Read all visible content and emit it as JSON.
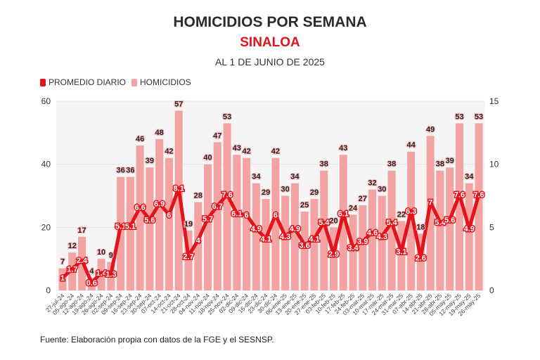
{
  "chart_data": {
    "type": "bar+line",
    "title": "HOMICIDIOS POR SEMANA",
    "subtitle": "SINALOA",
    "date_note": "AL 1 DE JUNIO DE 2025",
    "source": "Fuente: Elaboración propia con datos de la FGE y el SESNSP.",
    "legend": [
      "PROMEDIO DIARIO",
      "HOMICIDIOS"
    ],
    "legend_position": "top-left",
    "categories": [
      "27-jul-24",
      "05-ago-24",
      "12-ago-24",
      "19-ago-24",
      "26-ago-24",
      "02-sep-24",
      "09-sep-24",
      "16-sep-24",
      "23-sep-24",
      "30-sep-24",
      "07-oct-24",
      "14-oct-24",
      "21-oct-24",
      "28-oct-24",
      "04-nov-24",
      "11-nov-24",
      "18-nov-24",
      "25-nov-24",
      "02-dic-24",
      "09-dic-24",
      "16-dic-24",
      "23-dic-24",
      "30-dic-24",
      "06-ene-25",
      "13-ene-25",
      "20-ene-25",
      "27-ene-25",
      "03-feb-25",
      "10-feb-25",
      "17-feb-25",
      "24-feb-25",
      "03-mar-25",
      "10-mar-25",
      "17-mar-25",
      "24-mar-25",
      "31-mar-25",
      "07-abr-25",
      "14-abr-25",
      "21-abr-25",
      "28-abr-25",
      "05-may-25",
      "12-may-25",
      "19-may-25",
      "26-may-25"
    ],
    "series": [
      {
        "name": "HOMICIDIOS",
        "axis": "left",
        "type": "bar",
        "color": "#f4a3a3",
        "values": [
          7,
          12,
          17,
          4,
          10,
          9,
          36,
          36,
          46,
          39,
          48,
          42,
          57,
          19,
          28,
          40,
          47,
          53,
          43,
          42,
          34,
          29,
          42,
          30,
          34,
          25,
          29,
          38,
          20,
          43,
          24,
          27,
          32,
          30,
          38,
          22,
          44,
          18,
          49,
          38,
          39,
          53,
          34,
          53
        ]
      },
      {
        "name": "PROMEDIO DIARIO",
        "axis": "right",
        "type": "line",
        "color": "#e3121b",
        "values": [
          1,
          1.7,
          2.4,
          0.6,
          1.4,
          1.3,
          5.1,
          5.1,
          6.6,
          5.6,
          6.9,
          6,
          8.1,
          2.7,
          4,
          5.7,
          6.7,
          7.6,
          6.1,
          6,
          4.9,
          4.1,
          6,
          4.3,
          4.9,
          3.6,
          4.1,
          5.4,
          2.9,
          6.1,
          3.4,
          3.9,
          4.6,
          4.3,
          5.4,
          3.1,
          6.3,
          2.6,
          7,
          5.4,
          5.6,
          7.6,
          4.9,
          7.6
        ]
      }
    ],
    "ylim_left": [
      0,
      60
    ],
    "yticks_left": [
      0,
      20,
      40,
      60
    ],
    "ylim_right": [
      0,
      15
    ],
    "yticks_right": [
      0,
      5,
      10,
      15
    ],
    "grid": true
  }
}
